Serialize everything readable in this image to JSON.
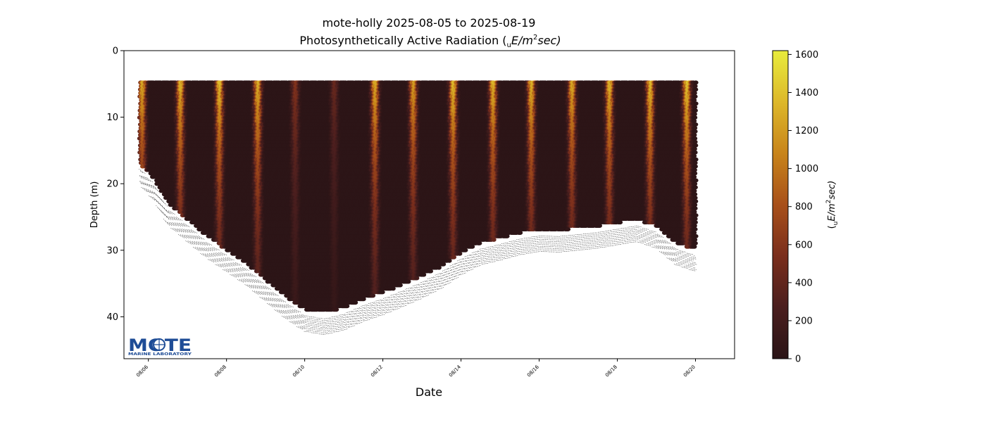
{
  "chart_data": {
    "type": "scatter",
    "title": "mote-holly 2025-08-05 to 2025-08-19",
    "subtitle_prefix": "Photosynthetically Active Radiation (",
    "subtitle_unit_sub": "u",
    "subtitle_unit_mid": "E/m",
    "subtitle_unit_sup": "2",
    "subtitle_unit_end": "sec)",
    "xlabel": "Date",
    "ylabel": "Depth (m)",
    "ylim": [
      46.3,
      0
    ],
    "y_inverted": true,
    "y_ticks": [
      0,
      10,
      20,
      30,
      40
    ],
    "x_range_days": [
      "2025-08-05T09:00",
      "2025-08-21T00:00"
    ],
    "x_ticks": [
      {
        "date": "2025-08-06",
        "label": "08/06"
      },
      {
        "date": "2025-08-08",
        "label": "08/08"
      },
      {
        "date": "2025-08-10",
        "label": "08/10"
      },
      {
        "date": "2025-08-12",
        "label": "08/12"
      },
      {
        "date": "2025-08-14",
        "label": "08/14"
      },
      {
        "date": "2025-08-16",
        "label": "08/16"
      },
      {
        "date": "2025-08-18",
        "label": "08/18"
      },
      {
        "date": "2025-08-20",
        "label": "08/20"
      }
    ],
    "colorbar": {
      "label_pre": "(",
      "label_sub": "u",
      "label_mid": "E/m",
      "label_sup": "2",
      "label_end": "sec)",
      "range": [
        0,
        1620
      ],
      "ticks": [
        0,
        200,
        400,
        600,
        800,
        1000,
        1200,
        1400,
        1600
      ],
      "colors": [
        "#2a1416",
        "#4a1e1e",
        "#7a2e1c",
        "#a8501a",
        "#c8841a",
        "#ddb82a",
        "#e8ec3c"
      ]
    },
    "data_start": "2025-08-05T19:00",
    "data_end": "2025-08-19T23:59",
    "min_depth_m": 4.8,
    "bottom_depth_profile": [
      {
        "date": "2025-08-05T19:00",
        "depth": 17.5
      },
      {
        "date": "2025-08-06T04:00",
        "depth": 20.0
      },
      {
        "date": "2025-08-06T12:00",
        "depth": 23.5
      },
      {
        "date": "2025-08-07T00:00",
        "depth": 26.0
      },
      {
        "date": "2025-08-07T12:00",
        "depth": 28.5
      },
      {
        "date": "2025-08-08T00:00",
        "depth": 30.5
      },
      {
        "date": "2025-08-08T12:00",
        "depth": 32.5
      },
      {
        "date": "2025-08-09T00:00",
        "depth": 35.0
      },
      {
        "date": "2025-08-09T12:00",
        "depth": 37.5
      },
      {
        "date": "2025-08-10T00:00",
        "depth": 39.5
      },
      {
        "date": "2025-08-10T12:00",
        "depth": 40.0
      },
      {
        "date": "2025-08-11T00:00",
        "depth": 39.3
      },
      {
        "date": "2025-08-11T12:00",
        "depth": 38.0
      },
      {
        "date": "2025-08-12T00:00",
        "depth": 37.0
      },
      {
        "date": "2025-08-12T12:00",
        "depth": 35.8
      },
      {
        "date": "2025-08-13T00:00",
        "depth": 34.5
      },
      {
        "date": "2025-08-13T12:00",
        "depth": 33.0
      },
      {
        "date": "2025-08-14T00:00",
        "depth": 31.0
      },
      {
        "date": "2025-08-14T12:00",
        "depth": 29.5
      },
      {
        "date": "2025-08-15T00:00",
        "depth": 28.8
      },
      {
        "date": "2025-08-15T12:00",
        "depth": 28.0
      },
      {
        "date": "2025-08-16T00:00",
        "depth": 27.5
      },
      {
        "date": "2025-08-16T12:00",
        "depth": 27.6
      },
      {
        "date": "2025-08-17T00:00",
        "depth": 27.3
      },
      {
        "date": "2025-08-17T12:00",
        "depth": 27.0
      },
      {
        "date": "2025-08-18T00:00",
        "depth": 26.5
      },
      {
        "date": "2025-08-18T12:00",
        "depth": 26.0
      },
      {
        "date": "2025-08-19T00:00",
        "depth": 27.0
      },
      {
        "date": "2025-08-19T12:00",
        "depth": 29.5
      },
      {
        "date": "2025-08-20T00:00",
        "depth": 30.5
      }
    ],
    "daylight_peaks": [
      {
        "date": "2025-08-05T21:00",
        "surface_par": 1300
      },
      {
        "date": "2025-08-06T20:30",
        "surface_par": 1350
      },
      {
        "date": "2025-08-07T20:30",
        "surface_par": 1400
      },
      {
        "date": "2025-08-08T20:00",
        "surface_par": 1350
      },
      {
        "date": "2025-08-09T19:00",
        "surface_par": 600
      },
      {
        "date": "2025-08-10T19:00",
        "surface_par": 450
      },
      {
        "date": "2025-08-11T20:00",
        "surface_par": 1300
      },
      {
        "date": "2025-08-12T19:30",
        "surface_par": 1250
      },
      {
        "date": "2025-08-13T20:00",
        "surface_par": 1400
      },
      {
        "date": "2025-08-14T20:30",
        "surface_par": 1350
      },
      {
        "date": "2025-08-15T20:00",
        "surface_par": 1350
      },
      {
        "date": "2025-08-16T21:00",
        "surface_par": 1300
      },
      {
        "date": "2025-08-17T20:00",
        "surface_par": 1350
      },
      {
        "date": "2025-08-18T21:00",
        "surface_par": 1400
      },
      {
        "date": "2025-08-19T19:30",
        "surface_par": 1450
      }
    ]
  },
  "logo": {
    "name": "MOTE",
    "tagline": "MARINE LABORATORY",
    "color": "#1e4c96"
  }
}
